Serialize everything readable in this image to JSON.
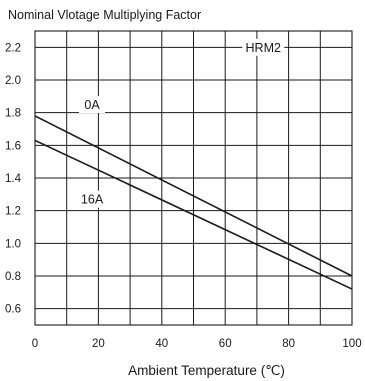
{
  "chart_data": {
    "type": "line",
    "title": "Nominal Vlotage Multiplying Factor",
    "xlabel": "Ambient Temperature (℃)",
    "ylabel": "",
    "xlim": [
      0,
      100
    ],
    "ylim": [
      0.5,
      2.3
    ],
    "x_ticks": [
      0,
      20,
      40,
      60,
      80,
      100
    ],
    "y_ticks": [
      0.6,
      0.8,
      1.0,
      1.2,
      1.4,
      1.6,
      1.8,
      2.0,
      2.2
    ],
    "x_ticks_labels": [
      "0",
      "20",
      "40",
      "60",
      "80",
      "100"
    ],
    "y_ticks_labels": [
      "0.6",
      "0.8",
      "1.0",
      "1.2",
      "1.4",
      "1.6",
      "1.8",
      "2.0",
      "2.2"
    ],
    "grid": true,
    "series": [
      {
        "name": "0A",
        "x": [
          0,
          100
        ],
        "y": [
          1.78,
          0.8
        ]
      },
      {
        "name": "16A",
        "x": [
          0,
          100
        ],
        "y": [
          1.63,
          0.72
        ]
      }
    ],
    "annotations": [
      {
        "text": "HRM2",
        "x": 72,
        "y": 2.2
      },
      {
        "text": "0A",
        "x": 18,
        "y": 1.85
      },
      {
        "text": "16A",
        "x": 18,
        "y": 1.27
      }
    ]
  }
}
